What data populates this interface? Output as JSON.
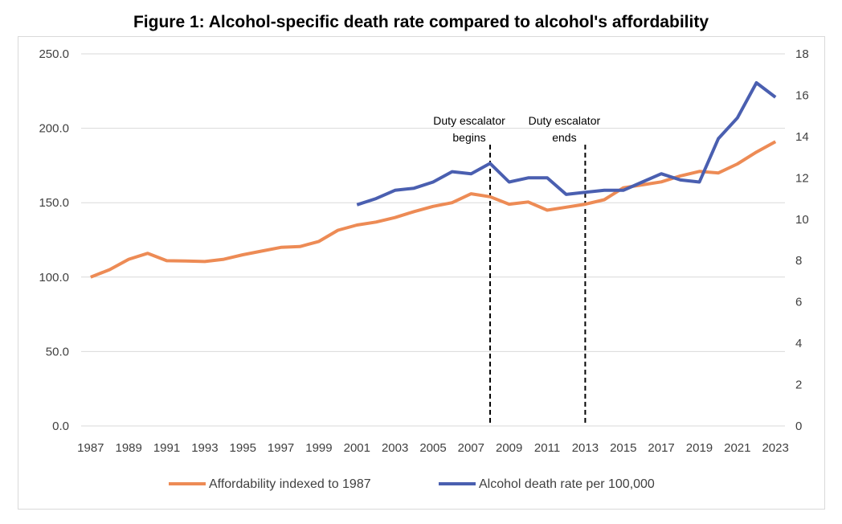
{
  "chart_data": {
    "type": "line",
    "title": "Figure 1: Alcohol-specific death rate compared to alcohol's affordability",
    "x": [
      1987,
      1988,
      1989,
      1990,
      1991,
      1992,
      1993,
      1994,
      1995,
      1996,
      1997,
      1998,
      1999,
      2000,
      2001,
      2002,
      2003,
      2004,
      2005,
      2006,
      2007,
      2008,
      2009,
      2010,
      2011,
      2012,
      2013,
      2014,
      2015,
      2016,
      2017,
      2018,
      2019,
      2020,
      2021,
      2022,
      2023
    ],
    "x_tick_labels": [
      "1987",
      "1989",
      "1991",
      "1993",
      "1995",
      "1997",
      "1999",
      "2001",
      "2003",
      "2005",
      "2007",
      "2009",
      "2011",
      "2013",
      "2015",
      "2017",
      "2019",
      "2021",
      "2023"
    ],
    "y_left": {
      "range": [
        0,
        250
      ],
      "ticks": [
        "0.0",
        "50.0",
        "100.0",
        "150.0",
        "200.0",
        "250.0"
      ]
    },
    "y_right": {
      "range": [
        0,
        18
      ],
      "ticks": [
        "0",
        "2",
        "4",
        "6",
        "8",
        "10",
        "12",
        "14",
        "16",
        "18"
      ]
    },
    "grid": true,
    "legend_position": "bottom",
    "series": [
      {
        "name": "Affordability indexed to 1987",
        "axis": "left",
        "color": "#ED8B55",
        "values": [
          100,
          105,
          112,
          116,
          111,
          110.8,
          110.5,
          112,
          115,
          117.5,
          120,
          120.5,
          124,
          131.5,
          135,
          137,
          140,
          144,
          147.5,
          150,
          156,
          154,
          149,
          150.5,
          145,
          147,
          149,
          152,
          160,
          162,
          164,
          168,
          171,
          170,
          176,
          184,
          191
        ]
      },
      {
        "name": "Alcohol death rate per 100,000",
        "axis": "right",
        "color": "#4A5FB0",
        "values": [
          null,
          null,
          null,
          null,
          null,
          null,
          null,
          null,
          null,
          null,
          null,
          null,
          null,
          null,
          10.7,
          11.0,
          11.4,
          11.5,
          11.8,
          12.3,
          12.2,
          12.7,
          11.8,
          12.0,
          12.0,
          11.2,
          11.3,
          11.4,
          11.4,
          11.8,
          12.2,
          11.9,
          11.8,
          13.9,
          14.9,
          16.6,
          15.9
        ]
      }
    ],
    "annotations": [
      {
        "year": 2008,
        "lines": [
          "Duty escalator",
          "begins"
        ]
      },
      {
        "year": 2013,
        "lines": [
          "Duty escalator",
          "ends"
        ]
      }
    ]
  }
}
